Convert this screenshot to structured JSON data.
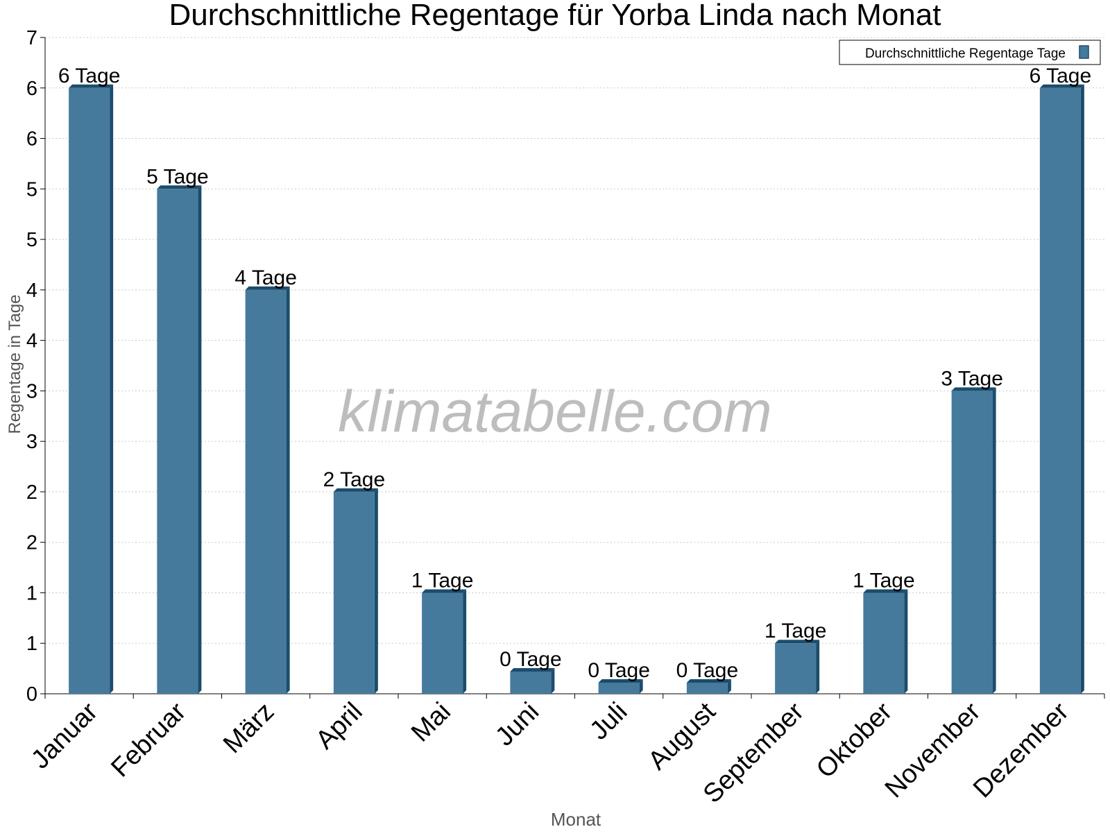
{
  "chart_data": {
    "type": "bar",
    "title": "Durchschnittliche Regentage für Yorba Linda nach Monat",
    "xlabel": "Monat",
    "ylabel": "Regentage in Tage",
    "ylim": [
      0,
      6.5
    ],
    "y_tick_values": [
      0,
      0.5,
      1,
      1.5,
      2,
      2.5,
      3,
      3.5,
      4,
      4.5,
      5,
      5.5,
      6,
      6.5
    ],
    "y_tick_labels": [
      "0",
      "1",
      "1",
      "2",
      "2",
      "3",
      "3",
      "4",
      "4",
      "5",
      "5",
      "6",
      "6",
      "7"
    ],
    "grid": true,
    "legend": {
      "placement": "top-right"
    },
    "watermark": "klimatabelle.com",
    "categories": [
      "Januar",
      "Februar",
      "März",
      "April",
      "Mai",
      "Juni",
      "Juli",
      "August",
      "September",
      "Oktober",
      "November",
      "Dezember"
    ],
    "series": [
      {
        "name": "Durchschnittliche Regentage Tage",
        "color": "#467a9c",
        "side_color": "#1c4c6c",
        "values": [
          6,
          5,
          4,
          2,
          1,
          0.22,
          0.11,
          0.11,
          0.5,
          1,
          3,
          6
        ],
        "labels": [
          "6 Tage",
          "5 Tage",
          "4 Tage",
          "2 Tage",
          "1 Tage",
          "0 Tage",
          "0 Tage",
          "0 Tage",
          "1 Tage",
          "1 Tage",
          "3 Tage",
          "6 Tage"
        ]
      }
    ]
  }
}
